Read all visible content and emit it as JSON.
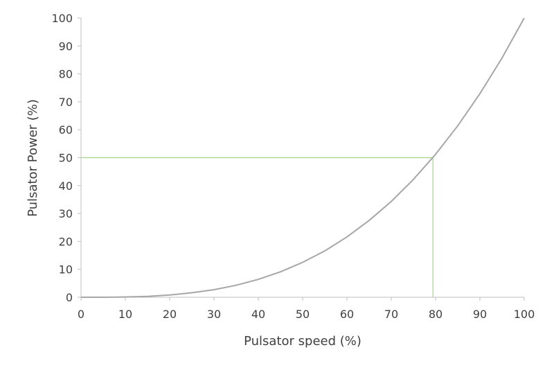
{
  "chart_data": {
    "type": "line",
    "xlabel": "Pulsator speed (%)",
    "ylabel": "Pulsator Power (%)",
    "xlim": [
      0,
      100
    ],
    "ylim": [
      0,
      100
    ],
    "xticks": [
      0,
      10,
      20,
      30,
      40,
      50,
      60,
      70,
      80,
      90,
      100
    ],
    "yticks": [
      0,
      10,
      20,
      30,
      40,
      50,
      60,
      70,
      80,
      90,
      100
    ],
    "grid": false,
    "series": [
      {
        "color": "#a6a6a6",
        "x": [
          0,
          5,
          10,
          15,
          20,
          25,
          30,
          35,
          40,
          45,
          50,
          55,
          60,
          65,
          70,
          75,
          80,
          85,
          90,
          95,
          100
        ],
        "y": [
          0,
          0.0,
          0.1,
          0.3,
          0.8,
          1.6,
          2.7,
          4.3,
          6.4,
          9.1,
          12.5,
          16.6,
          21.6,
          27.5,
          34.3,
          42.2,
          51.2,
          61.4,
          72.9,
          85.7,
          100
        ]
      }
    ],
    "reference_lines": {
      "color": "#a9d18e",
      "x": 79.4,
      "y": 50
    }
  }
}
